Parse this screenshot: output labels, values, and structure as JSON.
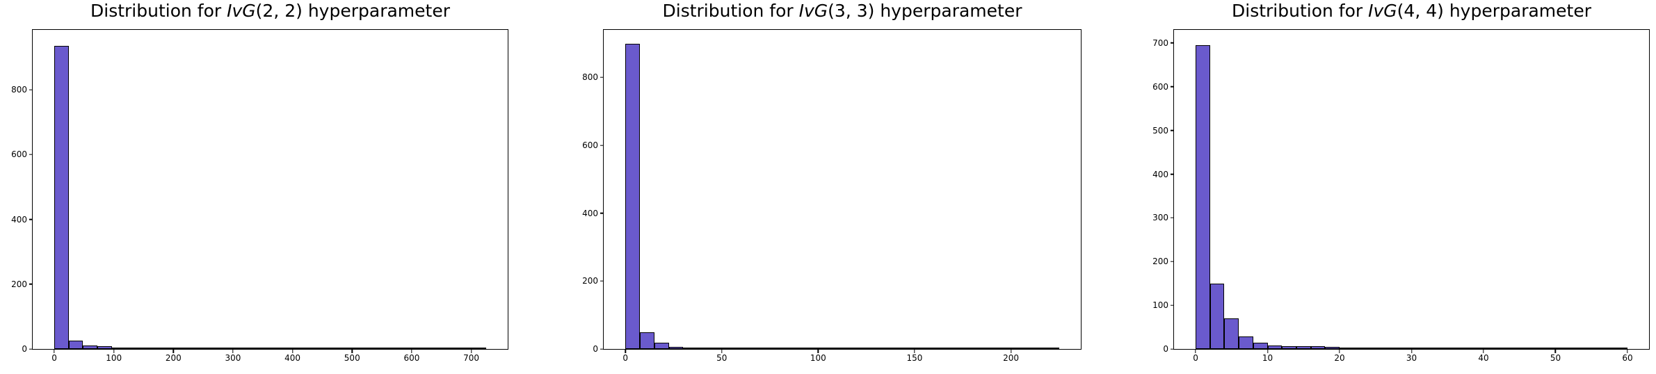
{
  "figure": {
    "background_color": "#ffffff",
    "bar_fill_color": "#6A5ACD",
    "bar_edge_color": "#000000"
  },
  "chart_data": [
    {
      "type": "bar",
      "subtype": "histogram",
      "title": "Distribution for IvG(2, 2) hyperparameter",
      "title_prefix": "Distribution for ",
      "title_math": "IvG",
      "title_suffix": "(2, 2) hyperparameter",
      "xlabel": "",
      "ylabel": "",
      "bin_start": 0,
      "bin_width": 24.1667,
      "counts": [
        935,
        25,
        11,
        8,
        2,
        2,
        5,
        2,
        0,
        0,
        0,
        0,
        0,
        0,
        0,
        0,
        0,
        0,
        0,
        0,
        0,
        3,
        0,
        0,
        0,
        0,
        0,
        0,
        0,
        1
      ],
      "xlim": [
        -36.25,
        761.25
      ],
      "ylim": [
        0,
        985
      ],
      "x_ticks": [
        0,
        100,
        200,
        300,
        400,
        500,
        600,
        700
      ],
      "y_ticks": [
        0,
        200,
        400,
        600,
        800
      ],
      "grid": false,
      "legend": null
    },
    {
      "type": "bar",
      "subtype": "histogram",
      "title": "Distribution for IvG(3, 3) hyperparameter",
      "title_prefix": "Distribution for ",
      "title_math": "IvG",
      "title_suffix": "(3, 3) hyperparameter",
      "xlabel": "",
      "ylabel": "",
      "bin_start": 0,
      "bin_width": 7.5,
      "counts": [
        900,
        50,
        18,
        7,
        2,
        4,
        2,
        0,
        0,
        3,
        0,
        0,
        0,
        0,
        0,
        0,
        0,
        0,
        0,
        0,
        0,
        0,
        0,
        0,
        0,
        0,
        0,
        0,
        0,
        1
      ],
      "xlim": [
        -11.25,
        236.25
      ],
      "ylim": [
        0,
        940
      ],
      "x_ticks": [
        0,
        50,
        100,
        150,
        200
      ],
      "y_ticks": [
        0,
        200,
        400,
        600,
        800
      ],
      "grid": false,
      "legend": null
    },
    {
      "type": "bar",
      "subtype": "histogram",
      "title": "Distribution for IvG(4, 4) hyperparameter",
      "title_prefix": "Distribution for ",
      "title_math": "IvG",
      "title_suffix": "(4, 4) hyperparameter",
      "xlabel": "",
      "ylabel": "",
      "bin_start": 0,
      "bin_width": 2,
      "counts": [
        695,
        150,
        70,
        28,
        15,
        8,
        6,
        6,
        7,
        5,
        0,
        0,
        0,
        0,
        0,
        0,
        0,
        0,
        0,
        0,
        0,
        0,
        0,
        0,
        0,
        0,
        0,
        0,
        0,
        1
      ],
      "xlim": [
        -3,
        63
      ],
      "ylim": [
        0,
        730
      ],
      "x_ticks": [
        0,
        10,
        20,
        30,
        40,
        50,
        60
      ],
      "y_ticks": [
        0,
        100,
        200,
        300,
        400,
        500,
        600,
        700
      ],
      "grid": false,
      "legend": null
    }
  ]
}
